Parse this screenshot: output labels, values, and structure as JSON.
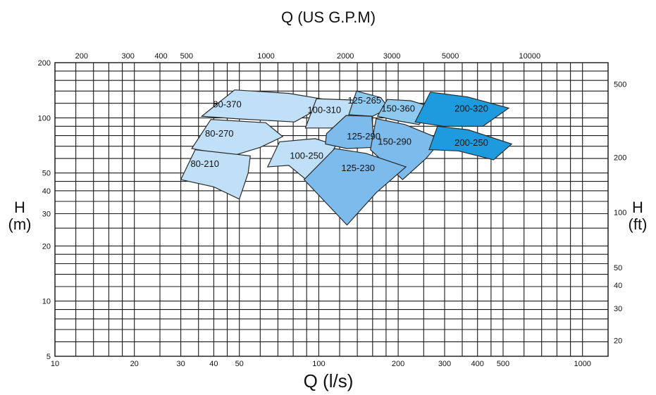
{
  "chart_data": {
    "type": "area",
    "title": "Q (US G.P.M)",
    "xlabel": "Q (l/s)",
    "ylabel": "H",
    "ylabel_unit": "(m)",
    "y2label": "H",
    "y2label_unit": "(ft)",
    "xscale": "log",
    "yscale": "log",
    "xlim": [
      10,
      1250
    ],
    "ylim": [
      5,
      200
    ],
    "grid": true,
    "x_ticks": [
      {
        "value": 10,
        "label": "10"
      },
      {
        "value": 20,
        "label": "20"
      },
      {
        "value": 30,
        "label": "30"
      },
      {
        "value": 40,
        "label": "40"
      },
      {
        "value": 50,
        "label": "50"
      },
      {
        "value": 100,
        "label": "100"
      },
      {
        "value": 200,
        "label": "200"
      },
      {
        "value": 300,
        "label": "300"
      },
      {
        "value": 400,
        "label": "400"
      },
      {
        "value": 500,
        "label": "500"
      },
      {
        "value": 1000,
        "label": "1000"
      }
    ],
    "x_gridlines": [
      10,
      12,
      14,
      16,
      18,
      20,
      25,
      30,
      35,
      40,
      45,
      50,
      60,
      70,
      80,
      90,
      100,
      120,
      140,
      160,
      180,
      200,
      250,
      300,
      350,
      400,
      450,
      500,
      600,
      700,
      800,
      900,
      1000,
      1250
    ],
    "y_ticks": [
      {
        "value": 5,
        "label": "5"
      },
      {
        "value": 10,
        "label": "10"
      },
      {
        "value": 20,
        "label": "20"
      },
      {
        "value": 30,
        "label": "30"
      },
      {
        "value": 40,
        "label": "40"
      },
      {
        "value": 50,
        "label": "50"
      },
      {
        "value": 100,
        "label": "100"
      },
      {
        "value": 200,
        "label": "200"
      }
    ],
    "y_gridlines": [
      5,
      6,
      7,
      8,
      9,
      10,
      12,
      14,
      16,
      18,
      20,
      25,
      30,
      35,
      40,
      45,
      50,
      60,
      70,
      80,
      90,
      100,
      120,
      140,
      160,
      180,
      200
    ],
    "x2_ticks": [
      {
        "value": 200,
        "label": "200"
      },
      {
        "value": 300,
        "label": "300"
      },
      {
        "value": 400,
        "label": "400"
      },
      {
        "value": 500,
        "label": "500"
      },
      {
        "value": 1000,
        "label": "1000"
      },
      {
        "value": 2000,
        "label": "2000"
      },
      {
        "value": 3000,
        "label": "3000"
      },
      {
        "value": 5000,
        "label": "5000"
      },
      {
        "value": 10000,
        "label": "10000"
      }
    ],
    "y2_ticks": [
      {
        "value": 20,
        "label": "20"
      },
      {
        "value": 30,
        "label": "30"
      },
      {
        "value": 40,
        "label": "40"
      },
      {
        "value": 50,
        "label": "50"
      },
      {
        "value": 100,
        "label": "100"
      },
      {
        "value": 200,
        "label": "200"
      },
      {
        "value": 500,
        "label": "500"
      }
    ],
    "regions": [
      {
        "name": "80-370",
        "color": "#bfe0f6",
        "label_at": [
          45,
          118
        ],
        "points": [
          [
            36,
            102
          ],
          [
            48,
            142
          ],
          [
            77,
            136
          ],
          [
            113,
            124
          ],
          [
            81,
            95
          ],
          [
            48,
            99
          ]
        ]
      },
      {
        "name": "80-270",
        "color": "#bfe0f6",
        "label_at": [
          42,
          82
        ],
        "points": [
          [
            33,
            68
          ],
          [
            39,
            98
          ],
          [
            63,
            94
          ],
          [
            73,
            79
          ],
          [
            60,
            69
          ],
          [
            47,
            62
          ]
        ]
      },
      {
        "name": "80-210",
        "color": "#bfe0f6",
        "label_at": [
          37,
          56
        ],
        "points": [
          [
            30,
            46
          ],
          [
            34,
            67
          ],
          [
            55,
            62
          ],
          [
            54,
            50
          ],
          [
            50,
            36
          ],
          [
            40,
            42
          ]
        ]
      },
      {
        "name": "100-250",
        "color": "#bfe0f6",
        "label_at": [
          90,
          62
        ],
        "points": [
          [
            64,
            54
          ],
          [
            71,
            74
          ],
          [
            97,
            77
          ],
          [
            116,
            71
          ],
          [
            102,
            49
          ],
          [
            93,
            44
          ],
          [
            77,
            55
          ]
        ]
      },
      {
        "name": "100-310",
        "color": "#bfe0f6",
        "label_at": [
          105,
          110
        ],
        "points": [
          [
            89,
            88
          ],
          [
            98,
            127
          ],
          [
            137,
            125
          ],
          [
            132,
            95
          ],
          [
            112,
            88
          ]
        ]
      },
      {
        "name": "125-265",
        "color": "#8ecaf0",
        "label_at": [
          149,
          124
        ],
        "points": [
          [
            130,
            104
          ],
          [
            139,
            140
          ],
          [
            172,
            129
          ],
          [
            184,
            113
          ],
          [
            160,
            102
          ]
        ]
      },
      {
        "name": "150-360",
        "color": "#8ecaf0",
        "label_at": [
          200,
          112
        ],
        "points": [
          [
            167,
            102
          ],
          [
            182,
            126
          ],
          [
            223,
            124
          ],
          [
            271,
            114
          ],
          [
            240,
            92
          ],
          [
            202,
            96
          ]
        ]
      },
      {
        "name": "125-290",
        "color": "#7dbbed",
        "label_at": [
          148,
          79
        ],
        "points": [
          [
            107,
            82
          ],
          [
            127,
            103
          ],
          [
            159,
            102
          ],
          [
            162,
            69
          ],
          [
            128,
            68
          ],
          [
            106,
            72
          ]
        ]
      },
      {
        "name": "150-290",
        "color": "#7dbbed",
        "label_at": [
          194,
          74
        ],
        "points": [
          [
            157,
            67
          ],
          [
            165,
            99
          ],
          [
            212,
            92
          ],
          [
            293,
            76
          ],
          [
            255,
            60
          ],
          [
            208,
            46
          ]
        ]
      },
      {
        "name": "125-230",
        "color": "#7dbbed",
        "label_at": [
          141,
          53
        ],
        "points": [
          [
            88,
            46
          ],
          [
            115,
            68
          ],
          [
            151,
            64
          ],
          [
            214,
            54
          ],
          [
            165,
            39
          ],
          [
            128,
            26
          ]
        ]
      },
      {
        "name": "200-320",
        "color": "#1e9bde",
        "label_at": [
          379,
          112
        ],
        "points": [
          [
            232,
            95
          ],
          [
            265,
            138
          ],
          [
            367,
            130
          ],
          [
            525,
            113
          ],
          [
            419,
            90
          ],
          [
            297,
            90
          ]
        ]
      },
      {
        "name": "200-250",
        "color": "#1e9bde",
        "label_at": [
          379,
          73
        ],
        "points": [
          [
            262,
            67
          ],
          [
            282,
            90
          ],
          [
            369,
            86
          ],
          [
            539,
            72
          ],
          [
            460,
            59
          ],
          [
            338,
            66
          ]
        ]
      }
    ]
  }
}
